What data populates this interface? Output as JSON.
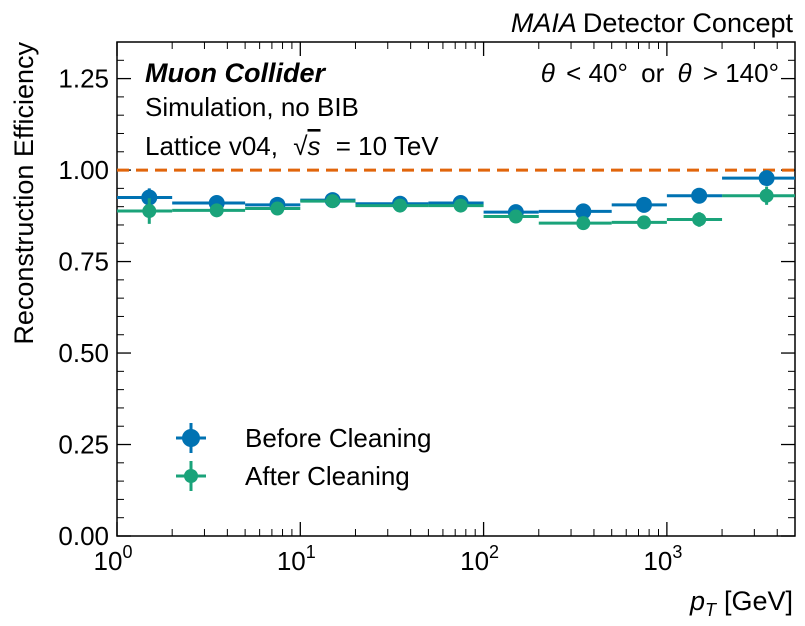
{
  "chart_data": {
    "type": "scatter",
    "title": "Detector Concept",
    "title_italic_prefix": "MAIA",
    "xlabel": "[GeV]",
    "xlabel_symbol": "p",
    "xlabel_subscript": "T",
    "ylabel": "Reconstruction Efficiency",
    "x_scale": "log",
    "xlim": [
      1,
      5000
    ],
    "ylim": [
      0,
      1.35
    ],
    "y_ticks": [
      0.0,
      0.25,
      0.5,
      0.75,
      1.0,
      1.25
    ],
    "y_tick_labels": [
      "0.00",
      "0.25",
      "0.50",
      "0.75",
      "1.00",
      "1.25"
    ],
    "x_ticks": [
      1,
      10,
      100,
      1000
    ],
    "x_tick_bases": [
      "10",
      "10",
      "10",
      "10"
    ],
    "x_tick_exps": [
      "0",
      "1",
      "2",
      "3"
    ],
    "reference_line": {
      "y": 1.0,
      "color": "#e1650b",
      "style": "dashed"
    },
    "annotations": {
      "experiment": "Muon Collider",
      "line2": "Simulation, no BIB",
      "line3_prefix": "Lattice v04,",
      "line3_s": "s",
      "line3_suffix": "= 10 TeV",
      "region_theta": "θ",
      "region_lt": "< 40°",
      "region_or": "or",
      "region_gt": "> 140°"
    },
    "legend_position": "lower-left",
    "series": [
      {
        "name": "Before Cleaning",
        "color": "#0072b2",
        "points": [
          {
            "x": 1.5,
            "xlo": 1,
            "xhi": 2,
            "y": 0.925,
            "yerr": 0.025
          },
          {
            "x": 3.5,
            "xlo": 2,
            "xhi": 5,
            "y": 0.91,
            "yerr": 0.012
          },
          {
            "x": 7.5,
            "xlo": 5,
            "xhi": 10,
            "y": 0.905,
            "yerr": 0.01
          },
          {
            "x": 15,
            "xlo": 10,
            "xhi": 20,
            "y": 0.918,
            "yerr": 0.008
          },
          {
            "x": 35,
            "xlo": 20,
            "xhi": 50,
            "y": 0.908,
            "yerr": 0.008
          },
          {
            "x": 75,
            "xlo": 50,
            "xhi": 100,
            "y": 0.91,
            "yerr": 0.008
          },
          {
            "x": 150,
            "xlo": 100,
            "xhi": 200,
            "y": 0.885,
            "yerr": 0.01
          },
          {
            "x": 350,
            "xlo": 200,
            "xhi": 500,
            "y": 0.887,
            "yerr": 0.01
          },
          {
            "x": 750,
            "xlo": 500,
            "xhi": 1000,
            "y": 0.905,
            "yerr": 0.01
          },
          {
            "x": 1500,
            "xlo": 1000,
            "xhi": 2000,
            "y": 0.93,
            "yerr": 0.012
          },
          {
            "x": 3500,
            "xlo": 2000,
            "xhi": 5000,
            "y": 0.978,
            "yerr": 0.012
          }
        ]
      },
      {
        "name": "After Cleaning",
        "color": "#1aa37a",
        "points": [
          {
            "x": 1.5,
            "xlo": 1,
            "xhi": 2,
            "y": 0.888,
            "yerr": 0.035
          },
          {
            "x": 3.5,
            "xlo": 2,
            "xhi": 5,
            "y": 0.89,
            "yerr": 0.015
          },
          {
            "x": 7.5,
            "xlo": 5,
            "xhi": 10,
            "y": 0.895,
            "yerr": 0.01
          },
          {
            "x": 15,
            "xlo": 10,
            "xhi": 20,
            "y": 0.915,
            "yerr": 0.008
          },
          {
            "x": 35,
            "xlo": 20,
            "xhi": 50,
            "y": 0.903,
            "yerr": 0.008
          },
          {
            "x": 75,
            "xlo": 50,
            "xhi": 100,
            "y": 0.903,
            "yerr": 0.008
          },
          {
            "x": 150,
            "xlo": 100,
            "xhi": 200,
            "y": 0.873,
            "yerr": 0.01
          },
          {
            "x": 350,
            "xlo": 200,
            "xhi": 500,
            "y": 0.855,
            "yerr": 0.01
          },
          {
            "x": 750,
            "xlo": 500,
            "xhi": 1000,
            "y": 0.857,
            "yerr": 0.01
          },
          {
            "x": 1500,
            "xlo": 1000,
            "xhi": 2000,
            "y": 0.865,
            "yerr": 0.02
          },
          {
            "x": 3500,
            "xlo": 2000,
            "xhi": 5000,
            "y": 0.93,
            "yerr": 0.025
          }
        ]
      }
    ]
  }
}
